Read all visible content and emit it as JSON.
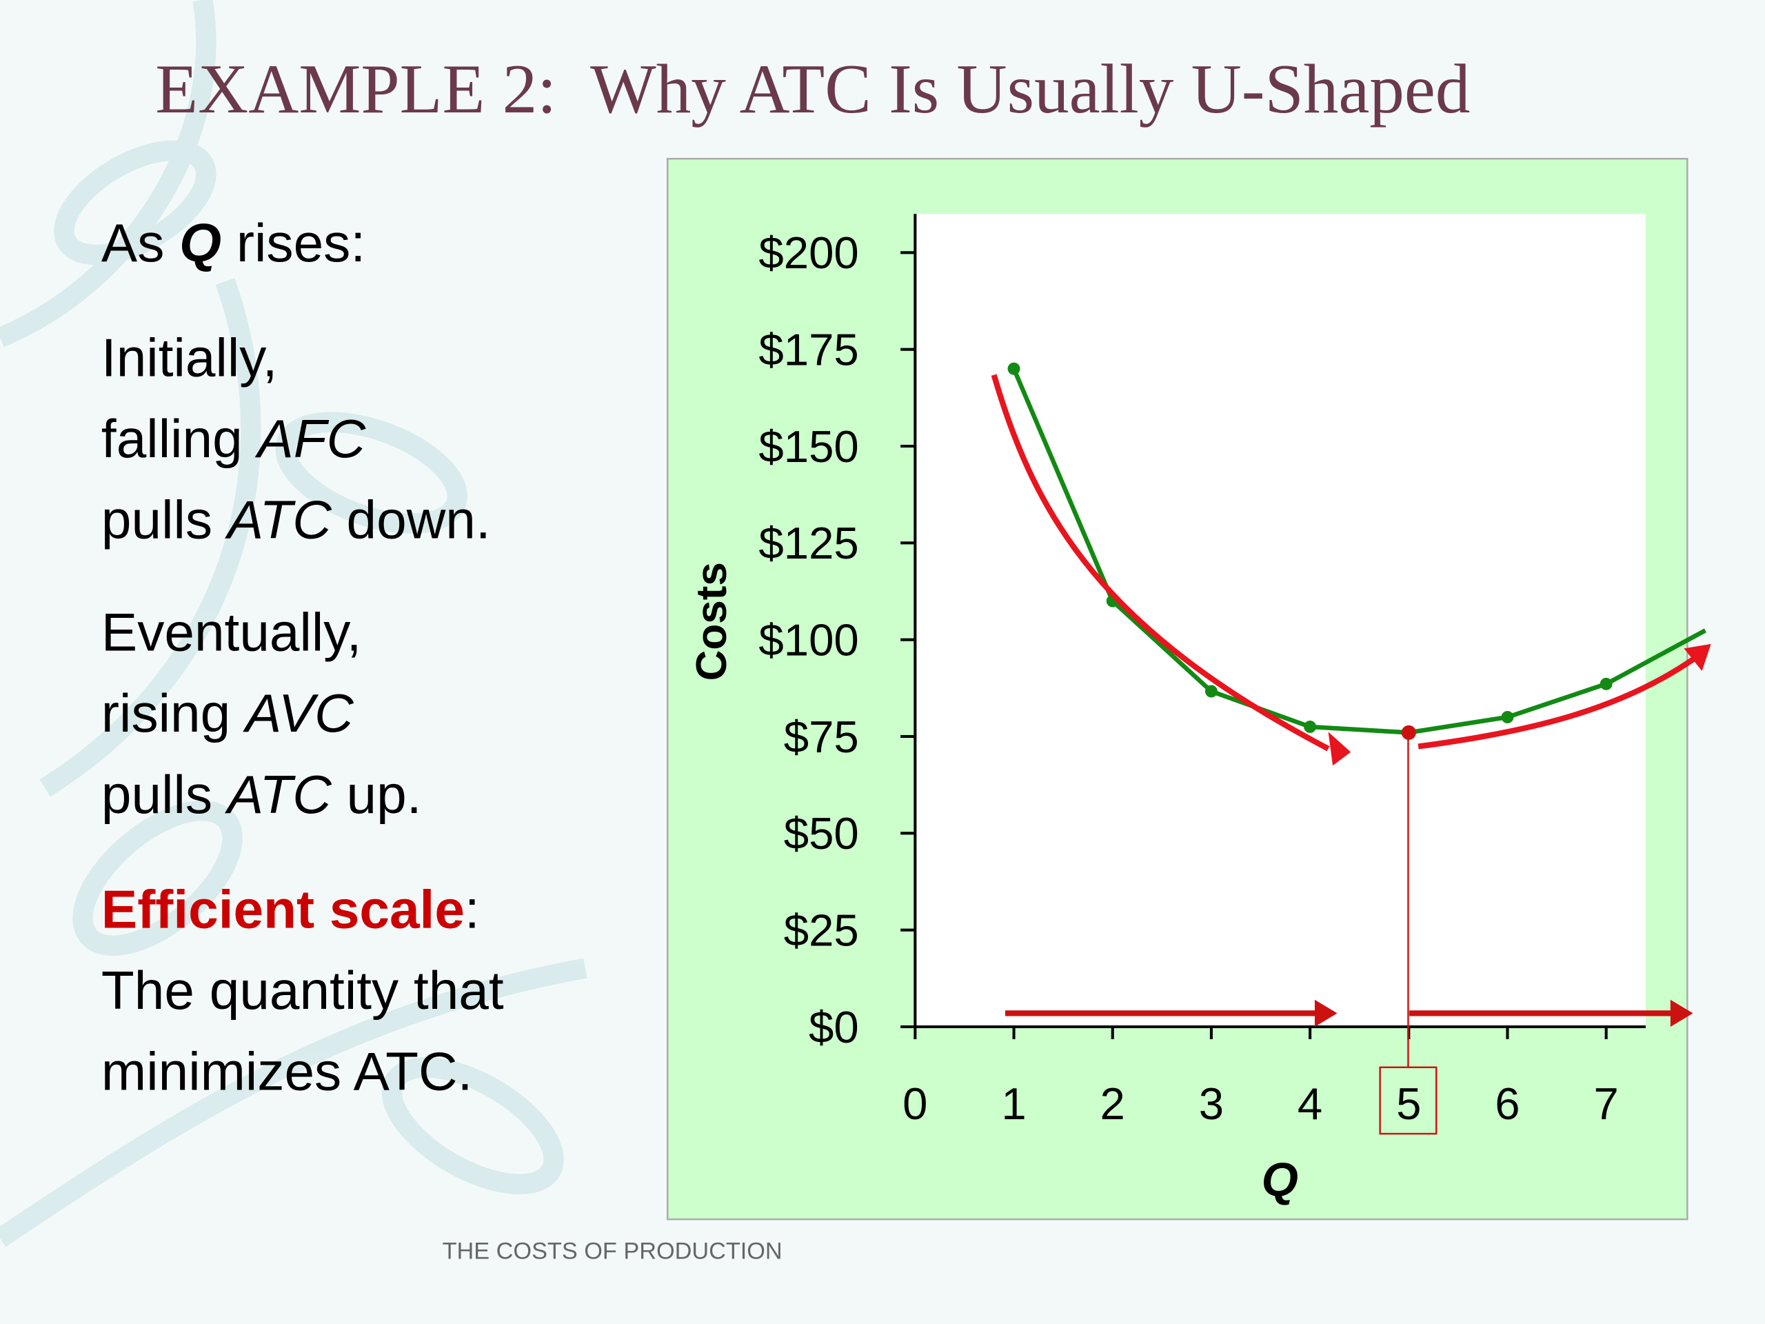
{
  "title": "EXAMPLE 2:  Why ATC Is Usually U-Shaped",
  "footer": "THE COSTS OF PRODUCTION",
  "left_text": [
    [
      "As ",
      "Q",
      " rises:"
    ],
    [
      "Initially,"
    ],
    [
      "falling ",
      "AFC"
    ],
    [
      "pulls ",
      "ATC",
      " down."
    ],
    [
      "Eventually,"
    ],
    [
      "rising ",
      "AVC"
    ],
    [
      "pulls ",
      "ATC",
      " up."
    ],
    [
      "Efficient scale",
      ":"
    ],
    [
      "The quantity that"
    ],
    [
      "minimizes ATC."
    ]
  ],
  "chart_data": {
    "type": "line",
    "ylabel": "Costs",
    "xlabel": "Q",
    "x": [
      1,
      2,
      3,
      4,
      5,
      6,
      7
    ],
    "series": [
      {
        "color": "#138a13",
        "values": [
          170,
          110,
          86.67,
          77.5,
          76,
          80,
          88.57
        ]
      }
    ],
    "min_marker_color": "#cc1111",
    "xlim": [
      0,
      7.4
    ],
    "xticks": [
      0,
      1,
      2,
      3,
      4,
      5,
      6,
      7
    ],
    "ylim": [
      0,
      210
    ],
    "yticks": [
      {
        "value": 0,
        "label": "$0"
      },
      {
        "value": 25,
        "label": "$25"
      },
      {
        "value": 50,
        "label": "$50"
      },
      {
        "value": 75,
        "label": "$75"
      },
      {
        "value": 100,
        "label": "$100"
      },
      {
        "value": 125,
        "label": "$125"
      },
      {
        "value": 150,
        "label": "$150"
      },
      {
        "value": 175,
        "label": "$175"
      },
      {
        "value": 200,
        "label": "$200"
      }
    ]
  }
}
